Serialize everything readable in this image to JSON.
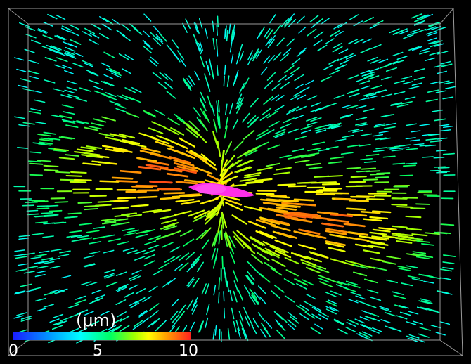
{
  "colorbar": {
    "unit_label": "(μm)",
    "ticks": [
      "0",
      "5",
      "10"
    ],
    "range": [
      0,
      10
    ],
    "colors": [
      "#1a1aff",
      "#00a0ff",
      "#00ffff",
      "#00ff60",
      "#a0ff00",
      "#ffff00",
      "#ffa000",
      "#ff2020"
    ]
  },
  "scene": {
    "background": "#000000",
    "cell_color": "#ff2ee8",
    "bounding_box_color": "#9a9a9a"
  }
}
